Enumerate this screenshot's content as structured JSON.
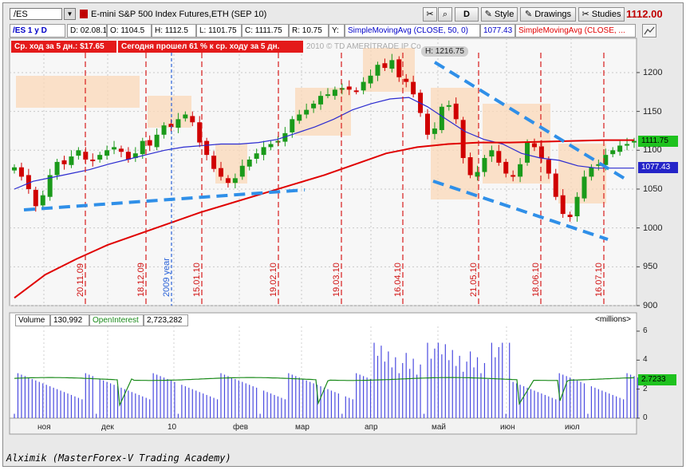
{
  "symbol": {
    "value": "/ES",
    "description": "E-mini S&P 500 Index Futures,ETH (SEP 10)"
  },
  "toolbar": {
    "period": "D",
    "style": "Style",
    "drawings": "Drawings",
    "studies": "Studies",
    "last_price": "1112.00"
  },
  "info": {
    "symbol_period": "/ES 1 y D",
    "date": "D: 02.08.10",
    "open": "O: 1104.5",
    "high": "H: 1112.5",
    "low": "L: 1101.75",
    "close": "C: 1111.75",
    "range": "R: 10.75",
    "y": "Y:",
    "sma50_label": "SimpleMovingAvg (CLOSE, 50, 0)",
    "sma50_value": "1077.43",
    "sma200_label": "SimpleMovingAvg (CLOSE, ..."
  },
  "badges": {
    "avg_move": "Ср. ход за 5 дн.: $17.65",
    "today_pct": "Сегодня прошел 61 % к ср. ходу за 5 дн."
  },
  "watermark": "2010 © TD AMERITRADE IP Co",
  "high_label": "H: 1216.75",
  "price_tags": {
    "last": "1111.75",
    "sma": "1077.43"
  },
  "volume_panel": {
    "volume_label": "Volume",
    "volume_value": "130,992",
    "oi_label": "OpenInterest",
    "oi_value": "2,723,282",
    "units": "<millions>",
    "oi_tag": "2.7233",
    "yticks": [
      "6",
      "4",
      "2",
      "0"
    ]
  },
  "caption": "Alximik (MasterForex-V Trading Academy)",
  "colors": {
    "up": "#1a9a1a",
    "down": "#d00000",
    "sma50": "#2b2bd0",
    "sma200": "#e00000",
    "trend": "#2f8fe8",
    "vline": "#d81c1c"
  },
  "chart_data": {
    "type": "candlestick",
    "ylim": [
      900,
      1240
    ],
    "yticks": [
      1200,
      1150,
      1100,
      1050,
      1000,
      950,
      900
    ],
    "xticks": [
      "ноя",
      "дек",
      "10",
      "фев",
      "мар",
      "апр",
      "май",
      "июн",
      "июл"
    ],
    "vertical_markers": [
      {
        "label": "20.11.09"
      },
      {
        "label": "18.12.09"
      },
      {
        "label": "2009 year"
      },
      {
        "label": "15.01.10"
      },
      {
        "label": "19.02.10"
      },
      {
        "label": "19.03.10"
      },
      {
        "label": "16.04.10"
      },
      {
        "label": "21.05.10"
      },
      {
        "label": "18.06.10"
      },
      {
        "label": "16.07.10"
      }
    ],
    "close_path": [
      1078,
      1066,
      1050,
      1028,
      1042,
      1068,
      1085,
      1082,
      1092,
      1100,
      1088,
      1086,
      1094,
      1100,
      1104,
      1098,
      1088,
      1096,
      1112,
      1106,
      1120,
      1132,
      1130,
      1140,
      1146,
      1136,
      1110,
      1094,
      1076,
      1066,
      1058,
      1064,
      1080,
      1088,
      1096,
      1104,
      1108,
      1112,
      1122,
      1140,
      1146,
      1152,
      1160,
      1170,
      1172,
      1178,
      1180,
      1178,
      1176,
      1188,
      1196,
      1210,
      1206,
      1216,
      1194,
      1188,
      1172,
      1148,
      1120,
      1128,
      1156,
      1158,
      1140,
      1090,
      1068,
      1072,
      1090,
      1100,
      1084,
      1070,
      1066,
      1082,
      1110,
      1104,
      1090,
      1070,
      1040,
      1018,
      1014,
      1040,
      1066,
      1078,
      1082,
      1094,
      1100,
      1106,
      1108,
      1112
    ],
    "sma50": [
      1050,
      1060,
      1065,
      1070,
      1075,
      1082,
      1088,
      1094,
      1100,
      1104,
      1106,
      1108,
      1108,
      1110,
      1114,
      1122,
      1130,
      1140,
      1152,
      1160,
      1166,
      1168,
      1156,
      1140,
      1124,
      1114,
      1108,
      1096,
      1090,
      1087,
      1080,
      1077,
      1077,
      1077
    ],
    "sma200": [
      910,
      940,
      960,
      978,
      992,
      1006,
      1020,
      1032,
      1044,
      1056,
      1068,
      1082,
      1096,
      1104,
      1108,
      1110,
      1110,
      1111,
      1112,
      1113,
      1113
    ],
    "volume_monthly_max_millions": 5.2,
    "open_interest_millions": 2.7233
  }
}
